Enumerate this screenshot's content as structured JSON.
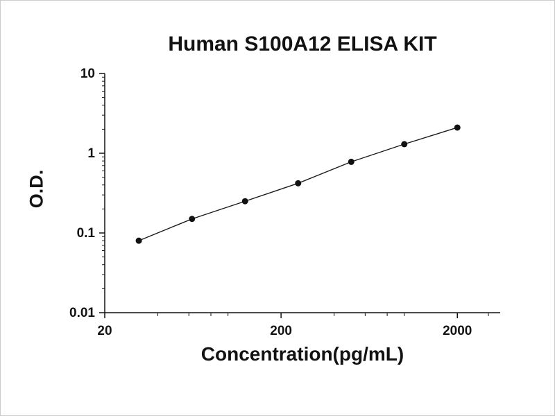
{
  "chart_data": {
    "type": "line",
    "title": "Human S100A12 ELISA KIT",
    "xlabel": "Concentration(pg/mL)",
    "ylabel": "O.D.",
    "x_scale": "log",
    "y_scale": "log",
    "xlim": [
      20,
      3500
    ],
    "ylim": [
      0.01,
      10
    ],
    "grid": false,
    "legend": "none",
    "x": [
      31.2,
      62.5,
      125,
      250,
      500,
      1000,
      2000
    ],
    "y": [
      0.08,
      0.15,
      0.25,
      0.42,
      0.78,
      1.3,
      2.1
    ],
    "x_major_ticks": [
      {
        "value": 20,
        "label": "20"
      },
      {
        "value": 200,
        "label": "200"
      },
      {
        "value": 2000,
        "label": "2000"
      }
    ],
    "x_minor_ticks": [
      40,
      60,
      80,
      100,
      400,
      600,
      800,
      1000,
      3000
    ],
    "y_major_ticks": [
      {
        "value": 0.01,
        "label": "0.01"
      },
      {
        "value": 0.1,
        "label": "0.1"
      },
      {
        "value": 1,
        "label": "1"
      },
      {
        "value": 10,
        "label": "10"
      }
    ],
    "y_minor_ticks": [
      0.02,
      0.03,
      0.04,
      0.05,
      0.06,
      0.07,
      0.08,
      0.09,
      0.2,
      0.3,
      0.4,
      0.5,
      0.6,
      0.7,
      0.8,
      0.9,
      2,
      3,
      4,
      5,
      6,
      7,
      8,
      9
    ],
    "axis_color": "#131313",
    "line_color": "#1a1a1a",
    "marker_color": "#111111"
  }
}
